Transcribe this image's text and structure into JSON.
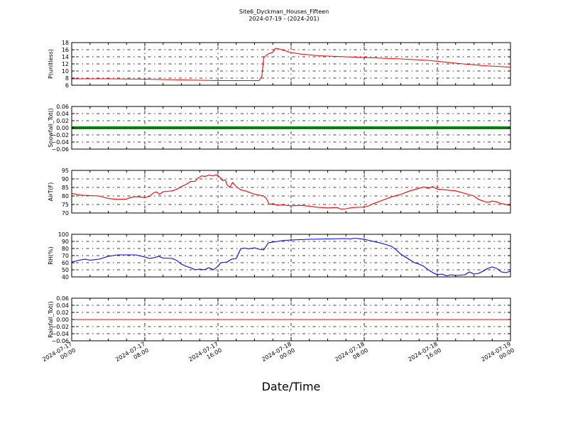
{
  "chart_data": {
    "type": "line",
    "title": "Site6_Dyckman_Houses_Fifteen",
    "subtitle": "2024-07-19 - (2024-201)",
    "xlabel": "Date/Time",
    "x_tick_labels": [
      [
        "2024-07-17",
        "00:00"
      ],
      [
        "2024-07-17",
        "08:00"
      ],
      [
        "2024-07-17",
        "16:00"
      ],
      [
        "2024-07-18",
        "00:00"
      ],
      [
        "2024-07-18",
        "08:00"
      ],
      [
        "2024-07-18",
        "16:00"
      ],
      [
        "2024-07-19",
        "00:00"
      ]
    ],
    "x_range_hours": [
      0,
      48
    ],
    "grid": true,
    "panels": [
      {
        "ylabel": "P(unitless)",
        "ylim": [
          6,
          18
        ],
        "yticks": [
          6,
          8,
          10,
          12,
          14,
          16,
          18
        ],
        "ytick_labels": [
          "6",
          "8",
          "10",
          "12",
          "14",
          "16",
          "18"
        ],
        "color": "#ff0000",
        "series": [
          {
            "values": [
              [
                0,
                7.8
              ],
              [
                4,
                7.8
              ],
              [
                8,
                7.7
              ],
              [
                12,
                7.5
              ],
              [
                16,
                7.3
              ],
              [
                20.5,
                7.3
              ],
              [
                20.8,
                8.5
              ],
              [
                21.0,
                13.8
              ],
              [
                21.5,
                14.8
              ],
              [
                22.0,
                15.3
              ],
              [
                22.3,
                16.4
              ],
              [
                22.7,
                16.2
              ],
              [
                23.2,
                15.8
              ],
              [
                24,
                15.2
              ],
              [
                25,
                14.8
              ],
              [
                27,
                14.3
              ],
              [
                30,
                14.0
              ],
              [
                33,
                13.7
              ],
              [
                36,
                13.4
              ],
              [
                39,
                13.0
              ],
              [
                42,
                12.2
              ],
              [
                45,
                11.5
              ],
              [
                48,
                11.1
              ]
            ]
          }
        ]
      },
      {
        "ylabel": "Snowfall_Tot()",
        "ylim": [
          -0.06,
          0.06
        ],
        "yticks": [
          -0.06,
          -0.04,
          -0.02,
          0,
          0.02,
          0.04,
          0.06
        ],
        "ytick_labels": [
          "−0.06",
          "−0.04",
          "−0.02",
          "0.00",
          "0.02",
          "0.04",
          "0.06"
        ],
        "color": "#008000",
        "series": [
          {
            "values": [
              [
                0,
                0
              ],
              [
                48,
                0
              ]
            ]
          }
        ]
      },
      {
        "ylabel": "AirT(F)",
        "ylim": [
          70,
          95
        ],
        "yticks": [
          70,
          75,
          80,
          85,
          90,
          95
        ],
        "ytick_labels": [
          "70",
          "75",
          "80",
          "85",
          "90",
          "95"
        ],
        "color": "#ff0000",
        "series": [
          {
            "values": [
              [
                0,
                81.5
              ],
              [
                1,
                80.5
              ],
              [
                2,
                80.2
              ],
              [
                3,
                80.0
              ],
              [
                4,
                78.5
              ],
              [
                5,
                78.0
              ],
              [
                6,
                78.2
              ],
              [
                6.5,
                79.2
              ],
              [
                7,
                79.5
              ],
              [
                7.5,
                79.4
              ],
              [
                8,
                79.0
              ],
              [
                8.5,
                79.8
              ],
              [
                9,
                82.0
              ],
              [
                9.3,
                82.3
              ],
              [
                9.6,
                81.0
              ],
              [
                10,
                82.5
              ],
              [
                11,
                83.0
              ],
              [
                11.5,
                84.0
              ],
              [
                12,
                85.5
              ],
              [
                12.5,
                86.8
              ],
              [
                13,
                88.5
              ],
              [
                13.5,
                88.6
              ],
              [
                13.8,
                90.5
              ],
              [
                14.2,
                91.8
              ],
              [
                14.6,
                91.5
              ],
              [
                15,
                92.2
              ],
              [
                15.5,
                91.8
              ],
              [
                15.8,
                92.5
              ],
              [
                16.2,
                91.0
              ],
              [
                16.5,
                89.0
              ],
              [
                16.8,
                89.5
              ],
              [
                17,
                86.5
              ],
              [
                17.3,
                85.0
              ],
              [
                17.6,
                88.0
              ],
              [
                18,
                85.5
              ],
              [
                18.5,
                83.5
              ],
              [
                19,
                83.0
              ],
              [
                20,
                81.0
              ],
              [
                21,
                80.0
              ],
              [
                21.3,
                78.5
              ],
              [
                21.6,
                75.0
              ],
              [
                22,
                75.5
              ],
              [
                22.5,
                74.5
              ],
              [
                23,
                74.8
              ],
              [
                24,
                74.2
              ],
              [
                25,
                74.5
              ],
              [
                26,
                74.0
              ],
              [
                27,
                73.3
              ],
              [
                28,
                73.0
              ],
              [
                29,
                73.2
              ],
              [
                29.5,
                72.3
              ],
              [
                30,
                72.5
              ],
              [
                30.5,
                73.0
              ],
              [
                31,
                73.3
              ],
              [
                32,
                73.5
              ],
              [
                32.5,
                74.2
              ],
              [
                33,
                75.5
              ],
              [
                34,
                77.5
              ],
              [
                35,
                79.5
              ],
              [
                36,
                81.0
              ],
              [
                37,
                83.0
              ],
              [
                38,
                84.5
              ],
              [
                38.5,
                85.3
              ],
              [
                39,
                84.5
              ],
              [
                39.5,
                85.5
              ],
              [
                40,
                84.0
              ],
              [
                41,
                83.5
              ],
              [
                42,
                83.0
              ],
              [
                43,
                81.5
              ],
              [
                44,
                80.0
              ],
              [
                44.5,
                78.0
              ],
              [
                45,
                77.0
              ],
              [
                45.5,
                76.2
              ],
              [
                46,
                77.0
              ],
              [
                46.5,
                76.5
              ],
              [
                47,
                75.5
              ],
              [
                48,
                74.5
              ]
            ]
          }
        ]
      },
      {
        "ylabel": "RH(%)",
        "ylim": [
          40,
          100
        ],
        "yticks": [
          40,
          50,
          60,
          70,
          80,
          90,
          100
        ],
        "ytick_labels": [
          "40",
          "50",
          "60",
          "70",
          "80",
          "90",
          "100"
        ],
        "color": "#0000ff",
        "series": [
          {
            "values": [
              [
                0,
                61
              ],
              [
                1,
                64
              ],
              [
                1.5,
                65
              ],
              [
                2,
                63.5
              ],
              [
                3,
                65
              ],
              [
                4,
                69
              ],
              [
                5,
                71
              ],
              [
                6,
                71
              ],
              [
                7,
                71
              ],
              [
                8,
                68
              ],
              [
                8.5,
                66
              ],
              [
                9,
                67
              ],
              [
                9.5,
                69
              ],
              [
                10,
                66.5
              ],
              [
                11,
                66
              ],
              [
                11.5,
                63
              ],
              [
                12,
                58
              ],
              [
                12.5,
                55
              ],
              [
                13,
                53
              ],
              [
                13.5,
                50
              ],
              [
                14,
                51
              ],
              [
                14.5,
                50
              ],
              [
                15,
                53
              ],
              [
                15.5,
                50
              ],
              [
                16,
                55
              ],
              [
                16.3,
                60
              ],
              [
                17,
                61
              ],
              [
                17.5,
                65
              ],
              [
                18,
                66
              ],
              [
                18.5,
                80
              ],
              [
                19,
                80.5
              ],
              [
                19.3,
                79.5
              ],
              [
                20,
                81
              ],
              [
                20.5,
                79
              ],
              [
                21,
                78
              ],
              [
                21.5,
                88
              ],
              [
                22,
                89
              ],
              [
                23,
                91
              ],
              [
                24,
                92
              ],
              [
                26,
                93
              ],
              [
                28,
                93.5
              ],
              [
                30,
                94
              ],
              [
                30.5,
                93.5
              ],
              [
                31,
                94.5
              ],
              [
                32,
                93
              ],
              [
                33,
                90
              ],
              [
                34,
                87
              ],
              [
                35,
                83
              ],
              [
                35.5,
                78
              ],
              [
                36,
                72
              ],
              [
                36.5,
                68
              ],
              [
                37,
                64
              ],
              [
                37.5,
                60
              ],
              [
                38,
                58
              ],
              [
                38.5,
                55
              ],
              [
                39,
                50
              ],
              [
                39.5,
                46
              ],
              [
                40,
                43
              ],
              [
                40.5,
                44
              ],
              [
                41,
                41.5
              ],
              [
                41.5,
                43
              ],
              [
                42,
                42
              ],
              [
                43,
                43
              ],
              [
                43.5,
                47
              ],
              [
                44,
                44
              ],
              [
                44.5,
                45
              ],
              [
                45,
                48
              ],
              [
                45.5,
                52
              ],
              [
                46,
                54
              ],
              [
                46.5,
                52
              ],
              [
                47,
                47
              ],
              [
                47.5,
                46
              ],
              [
                48,
                48
              ]
            ]
          }
        ]
      },
      {
        "ylabel": "Rainfall_Tot()",
        "ylim": [
          -0.06,
          0.06
        ],
        "yticks": [
          -0.06,
          -0.04,
          -0.02,
          0,
          0.02,
          0.04,
          0.06
        ],
        "ytick_labels": [
          "−0.06",
          "−0.04",
          "−0.02",
          "0.00",
          "0.02",
          "0.04",
          "0.06"
        ],
        "color": "#ff0000",
        "series": [
          {
            "values": [
              [
                0,
                0
              ],
              [
                48,
                0
              ]
            ]
          }
        ]
      }
    ]
  }
}
